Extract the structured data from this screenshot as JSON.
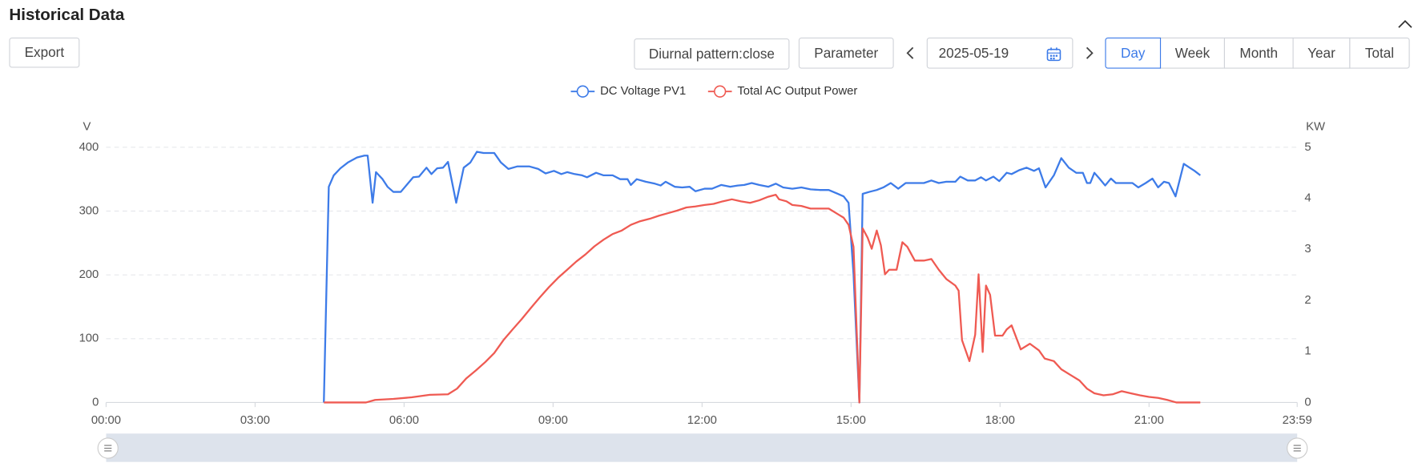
{
  "header": {
    "title": "Historical Data"
  },
  "toolbar": {
    "export": "Export",
    "diurnal": "Diurnal pattern:close",
    "parameter": "Parameter",
    "date": "2025-05-19",
    "periods": [
      "Day",
      "Week",
      "Month",
      "Year",
      "Total"
    ],
    "active_period": "Day"
  },
  "chart_data": {
    "type": "line",
    "ylabel": "V",
    "y2label": "KW",
    "grid": true,
    "xlim": [
      0,
      1439
    ],
    "xticks": [
      {
        "value": 0,
        "label": "00:00"
      },
      {
        "value": 180,
        "label": "03:00"
      },
      {
        "value": 360,
        "label": "06:00"
      },
      {
        "value": 540,
        "label": "09:00"
      },
      {
        "value": 720,
        "label": "12:00"
      },
      {
        "value": 900,
        "label": "15:00"
      },
      {
        "value": 1080,
        "label": "18:00"
      },
      {
        "value": 1260,
        "label": "21:00"
      },
      {
        "value": 1439,
        "label": "23:59"
      }
    ],
    "ylim": [
      0,
      400
    ],
    "yticks": [
      0,
      100,
      200,
      300,
      400
    ],
    "y2lim": [
      0,
      5
    ],
    "y2ticks": [
      0,
      1,
      2,
      3,
      4,
      5
    ],
    "series": [
      {
        "name": "DC Voltage PV1",
        "color": "#3d7be8",
        "axis": "y",
        "x": [
          263,
          269,
          275,
          283,
          292,
          303,
          312,
          316,
          322,
          326,
          334,
          340,
          347,
          356,
          365,
          371,
          378,
          387,
          393,
          400,
          407,
          413,
          423,
          432,
          440,
          448,
          456,
          469,
          477,
          486,
          497,
          511,
          522,
          531,
          541,
          550,
          557,
          566,
          575,
          581,
          592,
          601,
          612,
          621,
          630,
          634,
          641,
          652,
          663,
          670,
          676,
          687,
          696,
          705,
          712,
          723,
          732,
          743,
          754,
          763,
          771,
          780,
          789,
          800,
          809,
          818,
          829,
          840,
          851,
          862,
          873,
          884,
          891,
          897,
          903,
          910,
          914,
          922,
          931,
          939,
          948,
          957,
          966,
          977,
          988,
          997,
          1006,
          1015,
          1026,
          1032,
          1041,
          1050,
          1057,
          1063,
          1072,
          1079,
          1088,
          1094,
          1103,
          1112,
          1121,
          1127,
          1135,
          1145,
          1154,
          1163,
          1172,
          1180,
          1185,
          1189,
          1194,
          1200,
          1207,
          1214,
          1220,
          1231,
          1240,
          1247,
          1256,
          1264,
          1271,
          1278,
          1284,
          1292,
          1302,
          1309,
          1315,
          1322
        ],
        "values": [
          0,
          338,
          356,
          367,
          376,
          384,
          387,
          387,
          313,
          361,
          350,
          338,
          330,
          330,
          344,
          353,
          354,
          368,
          358,
          367,
          368,
          377,
          313,
          368,
          376,
          393,
          391,
          391,
          376,
          366,
          370,
          370,
          366,
          359,
          363,
          358,
          361,
          358,
          356,
          353,
          360,
          356,
          356,
          350,
          350,
          341,
          350,
          346,
          343,
          340,
          346,
          338,
          337,
          338,
          331,
          335,
          335,
          341,
          338,
          340,
          341,
          344,
          341,
          338,
          343,
          337,
          335,
          337,
          334,
          333,
          333,
          327,
          323,
          313,
          201,
          0,
          327,
          330,
          333,
          337,
          344,
          335,
          344,
          344,
          344,
          348,
          344,
          346,
          346,
          354,
          348,
          348,
          353,
          348,
          354,
          347,
          360,
          358,
          364,
          368,
          363,
          367,
          337,
          356,
          383,
          368,
          360,
          360,
          344,
          344,
          360,
          351,
          340,
          351,
          344,
          344,
          344,
          337,
          344,
          351,
          337,
          346,
          344,
          323,
          374,
          368,
          363,
          356
        ]
      },
      {
        "name": "Total AC Output Power",
        "color": "#ef5a52",
        "axis": "y2",
        "x": [
          263,
          314,
          325,
          347,
          369,
          391,
          413,
          424,
          435,
          447,
          458,
          469,
          480,
          491,
          502,
          513,
          524,
          535,
          546,
          557,
          568,
          579,
          590,
          601,
          612,
          623,
          634,
          645,
          657,
          668,
          679,
          690,
          701,
          712,
          723,
          734,
          745,
          756,
          767,
          778,
          789,
          800,
          809,
          813,
          822,
          829,
          840,
          851,
          862,
          873,
          884,
          891,
          897,
          903,
          910,
          914,
          920,
          925,
          931,
          936,
          941,
          946,
          955,
          962,
          968,
          977,
          988,
          997,
          1006,
          1015,
          1026,
          1030,
          1034,
          1043,
          1050,
          1054,
          1059,
          1063,
          1068,
          1074,
          1083,
          1088,
          1094,
          1105,
          1116,
          1127,
          1134,
          1145,
          1154,
          1165,
          1176,
          1185,
          1194,
          1205,
          1216,
          1227,
          1238,
          1249,
          1260,
          1271,
          1282,
          1293,
          1322
        ],
        "values": [
          0,
          0,
          0.05,
          0.07,
          0.1,
          0.15,
          0.16,
          0.27,
          0.47,
          0.63,
          0.79,
          0.97,
          1.22,
          1.43,
          1.63,
          1.85,
          2.06,
          2.26,
          2.44,
          2.6,
          2.76,
          2.9,
          3.06,
          3.19,
          3.3,
          3.37,
          3.48,
          3.55,
          3.6,
          3.66,
          3.71,
          3.76,
          3.82,
          3.84,
          3.87,
          3.89,
          3.94,
          3.98,
          3.94,
          3.91,
          3.96,
          4.03,
          4.07,
          3.98,
          3.94,
          3.87,
          3.85,
          3.8,
          3.8,
          3.8,
          3.69,
          3.62,
          3.48,
          3.05,
          0,
          3.41,
          3.23,
          3.01,
          3.37,
          3.08,
          2.51,
          2.6,
          2.6,
          3.14,
          3.05,
          2.78,
          2.78,
          2.81,
          2.6,
          2.42,
          2.29,
          2.19,
          1.22,
          0.81,
          1.33,
          2.51,
          0.99,
          2.29,
          2.11,
          1.31,
          1.31,
          1.43,
          1.51,
          1.04,
          1.15,
          1.02,
          0.86,
          0.81,
          0.65,
          0.54,
          0.43,
          0.27,
          0.18,
          0.14,
          0.16,
          0.22,
          0.18,
          0.14,
          0.11,
          0.09,
          0.05,
          0,
          0
        ]
      }
    ]
  }
}
